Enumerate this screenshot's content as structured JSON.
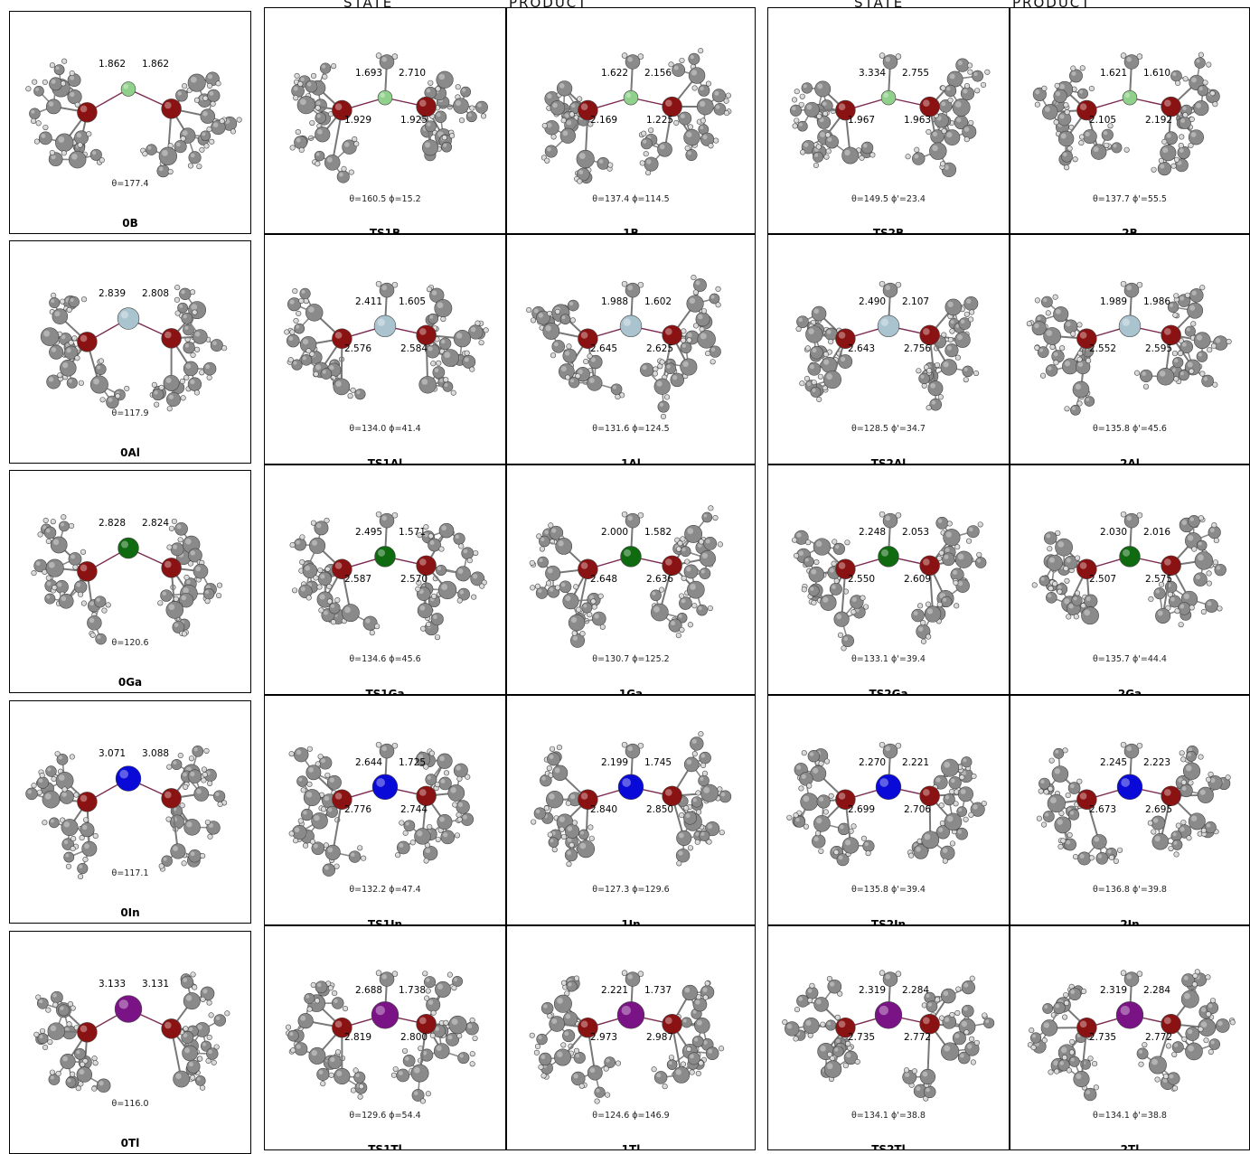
{
  "headers": {
    "group1": [
      "STATE",
      "PRODUCT"
    ],
    "group2": [
      "STATE",
      "PRODUCT"
    ]
  },
  "colors": {
    "B": "#8fd08a",
    "Al": "#a9c4cf",
    "Ga": "#0f6a10",
    "In": "#0a0ad8",
    "Tl": "#7a1486",
    "P": "#8b1212",
    "C": "#8a8a8a",
    "H": "#d8d8d8"
  },
  "rows": [
    {
      "metal": "B",
      "left": {
        "name": "0B",
        "angles": "θ=177.4",
        "labels": [
          "1.862",
          "1.862"
        ]
      },
      "cells": [
        {
          "name": "TS1B",
          "angles": "θ=160.5    ϕ=15.2",
          "labels": [
            "1.693",
            "2.710",
            "1.929",
            "1.925"
          ]
        },
        {
          "name": "1B",
          "angles": "θ=137.4    ϕ=114.5",
          "labels": [
            "1.622",
            "2.156",
            "2.169",
            "1.225"
          ]
        },
        {
          "name": "TS2B",
          "angles": "θ=149.5    ϕ'=23.4",
          "labels": [
            "3.334",
            "2.755",
            "1.967",
            "1.963"
          ]
        },
        {
          "name": "2B",
          "angles": "θ=137.7    ϕ'=55.5",
          "labels": [
            "1.621",
            "1.610",
            "2.105",
            "2.192"
          ]
        }
      ]
    },
    {
      "metal": "Al",
      "left": {
        "name": "0Al",
        "angles": "θ=117.9",
        "labels": [
          "2.839",
          "2.808"
        ]
      },
      "cells": [
        {
          "name": "TS1Al",
          "angles": "θ=134.0    ϕ=41.4",
          "labels": [
            "2.411",
            "1.605",
            "2.576",
            "2.584"
          ]
        },
        {
          "name": "1Al",
          "angles": "θ=131.6    ϕ=124.5",
          "labels": [
            "1.988",
            "1.602",
            "2.645",
            "2.625"
          ]
        },
        {
          "name": "TS2Al",
          "angles": "θ=128.5    ϕ'=34.7",
          "labels": [
            "2.490",
            "2.107",
            "2.643",
            "2.756"
          ]
        },
        {
          "name": "2Al",
          "angles": "θ=135.8    ϕ'=45.6",
          "labels": [
            "1.989",
            "1.986",
            "2.552",
            "2.595"
          ]
        }
      ]
    },
    {
      "metal": "Ga",
      "left": {
        "name": "0Ga",
        "angles": "θ=120.6",
        "labels": [
          "2.828",
          "2.824"
        ]
      },
      "cells": [
        {
          "name": "TS1Ga",
          "angles": "θ=134.6    ϕ=45.6",
          "labels": [
            "2.495",
            "1.571",
            "2.587",
            "2.570"
          ]
        },
        {
          "name": "1Ga",
          "angles": "θ=130.7    ϕ=125.2",
          "labels": [
            "2.000",
            "1.582",
            "2.648",
            "2.636"
          ]
        },
        {
          "name": "TS2Ga",
          "angles": "θ=133.1    ϕ'=39.4",
          "labels": [
            "2.248",
            "2.053",
            "2.550",
            "2.609"
          ]
        },
        {
          "name": "2Ga",
          "angles": "θ=135.7    ϕ'=44.4",
          "labels": [
            "2.030",
            "2.016",
            "2.507",
            "2.575"
          ]
        }
      ]
    },
    {
      "metal": "In",
      "left": {
        "name": "0In",
        "angles": "θ=117.1",
        "labels": [
          "3.071",
          "3.088"
        ]
      },
      "cells": [
        {
          "name": "TS1In",
          "angles": "θ=132.2    ϕ=47.4",
          "labels": [
            "2.644",
            "1.725",
            "2.776",
            "2.744"
          ]
        },
        {
          "name": "1In",
          "angles": "θ=127.3    ϕ=129.6",
          "labels": [
            "2.199",
            "1.745",
            "2.840",
            "2.850"
          ]
        },
        {
          "name": "TS2In",
          "angles": "θ=135.8    ϕ'=39.4",
          "labels": [
            "2.270",
            "2.221",
            "2.699",
            "2.706"
          ]
        },
        {
          "name": "2In",
          "angles": "θ=136.8    ϕ'=39.8",
          "labels": [
            "2.245",
            "2.223",
            "2.673",
            "2.695"
          ]
        }
      ]
    },
    {
      "metal": "Tl",
      "left": {
        "name": "0Tl",
        "angles": "θ=116.0",
        "labels": [
          "3.133",
          "3.131"
        ]
      },
      "cells": [
        {
          "name": "TS1Tl",
          "angles": "θ=129.6    ϕ=54.4",
          "labels": [
            "2.688",
            "1.738",
            "2.819",
            "2.800"
          ]
        },
        {
          "name": "1Tl",
          "angles": "θ=124.6    ϕ=146.9",
          "labels": [
            "2.221",
            "1.737",
            "2.973",
            "2.987"
          ]
        },
        {
          "name": "TS2Tl",
          "angles": "θ=134.1    ϕ'=38.8",
          "labels": [
            "2.319",
            "2.284",
            "2.735",
            "2.772"
          ]
        },
        {
          "name": "2Tl",
          "angles": "θ=134.1    ϕ'=38.8",
          "labels": [
            "2.319",
            "2.284",
            "2.735",
            "2.772"
          ]
        }
      ]
    }
  ]
}
